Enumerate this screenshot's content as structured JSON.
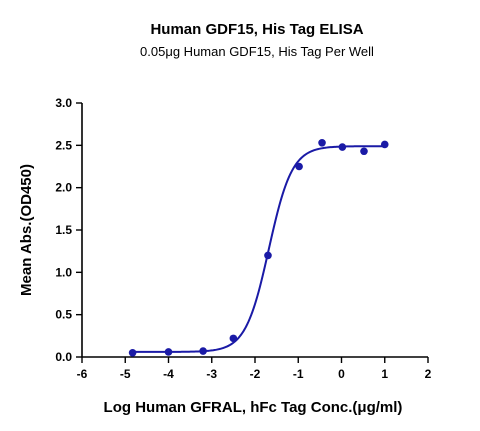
{
  "chart_data": {
    "type": "scatter",
    "title": "Human GDF15, His Tag ELISA",
    "subtitle": "0.05μg Human GDF15, His Tag Per Well",
    "xlabel": "Log Human GFRAL, hFc Tag Conc.(μg/ml)",
    "ylabel": "Mean Abs.(OD450)",
    "xlim": [
      -6,
      2
    ],
    "ylim": [
      0,
      3.0
    ],
    "x_ticks": [
      -6,
      -5,
      -4,
      -3,
      -2,
      -1,
      0,
      1,
      2
    ],
    "x_tick_labels": [
      "-6",
      "-5",
      "-4",
      "-3",
      "-2",
      "-1",
      "0",
      "1",
      "2"
    ],
    "y_ticks": [
      0,
      0.5,
      1.0,
      1.5,
      2.0,
      2.5,
      3.0
    ],
    "y_tick_labels": [
      "0.0",
      "0.5",
      "1.0",
      "1.5",
      "2.0",
      "2.5",
      "3.0"
    ],
    "grid": false,
    "color": "#1a1aa6",
    "points": [
      {
        "x": -4.83,
        "y": 0.05
      },
      {
        "x": -4.0,
        "y": 0.06
      },
      {
        "x": -3.2,
        "y": 0.07
      },
      {
        "x": -2.5,
        "y": 0.22
      },
      {
        "x": -1.7,
        "y": 1.2
      },
      {
        "x": -0.98,
        "y": 2.25
      },
      {
        "x": -0.45,
        "y": 2.53
      },
      {
        "x": 0.02,
        "y": 2.48
      },
      {
        "x": 0.52,
        "y": 2.43
      },
      {
        "x": 1.0,
        "y": 2.51
      }
    ],
    "fit": {
      "model": "4PL",
      "bottom": 0.06,
      "top": 2.49,
      "logEC50": -1.68,
      "hill": 1.62
    }
  }
}
